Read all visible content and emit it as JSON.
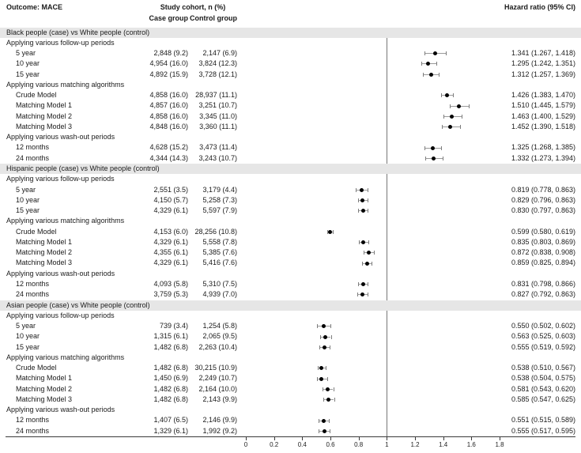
{
  "header": {
    "outcome_label": "Outcome: MACE",
    "cohort_label": "Study cohort, n (%)",
    "case_col": "Case group",
    "control_col": "Control group",
    "hr_col": "Hazard ratio (95% CI)"
  },
  "colors": {
    "section_band": "#e6e6e6",
    "dot": "#000000",
    "whisker": "#9a9a9a",
    "reference_line": "#777777",
    "axis": "#3a3a3a"
  },
  "chart_data": {
    "type": "forest",
    "title": "Outcome: MACE",
    "xlabel": "",
    "x_ticks": [
      0,
      0.2,
      0.4,
      0.6,
      0.8,
      1,
      1.2,
      1.4,
      1.6,
      1.8
    ],
    "xlim": [
      0,
      1.9
    ],
    "reference_value": 1,
    "legend_position": "none",
    "grid": false,
    "subgroup_labels": {
      "followup": "Applying various follow-up periods",
      "matching": "Applying various matching algorithms",
      "washout": "Applying various wash-out periods"
    },
    "sections": [
      {
        "title": "Black people (case) vs White people (control)",
        "groups": [
          {
            "label": "Applying various follow-up periods",
            "rows": [
              {
                "label": "5 year",
                "case": "2,848 (9.2)",
                "control": "2,147 (6.9)",
                "hr": 1.341,
                "lo": 1.267,
                "hi": 1.418,
                "text": "1.341 (1.267, 1.418)"
              },
              {
                "label": "10 year",
                "case": "4,954 (16.0)",
                "control": "3,824 (12.3)",
                "hr": 1.295,
                "lo": 1.242,
                "hi": 1.351,
                "text": "1.295 (1.242, 1.351)"
              },
              {
                "label": "15 year",
                "case": "4,892 (15.9)",
                "control": "3,728 (12.1)",
                "hr": 1.312,
                "lo": 1.257,
                "hi": 1.369,
                "text": "1.312 (1.257, 1.369)"
              }
            ]
          },
          {
            "label": "Applying various matching algorithms",
            "rows": [
              {
                "label": "Crude Model",
                "case": "4,858 (16.0)",
                "control": "28,937 (11.1)",
                "hr": 1.426,
                "lo": 1.383,
                "hi": 1.47,
                "text": "1.426 (1.383, 1.470)"
              },
              {
                "label": "Matching Model 1",
                "case": "4,857 (16.0)",
                "control": "3,251 (10.7)",
                "hr": 1.51,
                "lo": 1.445,
                "hi": 1.579,
                "text": "1.510 (1.445, 1.579)"
              },
              {
                "label": "Matching Model 2",
                "case": "4,858 (16.0)",
                "control": "3,345 (11.0)",
                "hr": 1.463,
                "lo": 1.4,
                "hi": 1.529,
                "text": "1.463 (1.400, 1.529)"
              },
              {
                "label": "Matching Model 3",
                "case": "4,848 (16.0)",
                "control": "3,360 (11.1)",
                "hr": 1.452,
                "lo": 1.39,
                "hi": 1.518,
                "text": "1.452 (1.390, 1.518)"
              }
            ]
          },
          {
            "label": "Applying various wash-out periods",
            "rows": [
              {
                "label": "12 months",
                "case": "4,628 (15.2)",
                "control": "3,473 (11.4)",
                "hr": 1.325,
                "lo": 1.268,
                "hi": 1.385,
                "text": "1.325 (1.268, 1.385)"
              },
              {
                "label": "24 months",
                "case": "4,344 (14.3)",
                "control": "3,243 (10.7)",
                "hr": 1.332,
                "lo": 1.273,
                "hi": 1.394,
                "text": "1.332 (1.273, 1.394)"
              }
            ]
          }
        ]
      },
      {
        "title": "Hispanic people (case) vs White people (control)",
        "groups": [
          {
            "label": "Applying various follow-up periods",
            "rows": [
              {
                "label": "5 year",
                "case": "2,551 (3.5)",
                "control": "3,179 (4.4)",
                "hr": 0.819,
                "lo": 0.778,
                "hi": 0.863,
                "text": "0.819 (0.778, 0.863)"
              },
              {
                "label": "10 year",
                "case": "4,150 (5.7)",
                "control": "5,258 (7.3)",
                "hr": 0.829,
                "lo": 0.796,
                "hi": 0.863,
                "text": "0.829 (0.796, 0.863)"
              },
              {
                "label": "15 year",
                "case": "4,329 (6.1)",
                "control": "5,597 (7.9)",
                "hr": 0.83,
                "lo": 0.797,
                "hi": 0.863,
                "text": "0.830 (0.797, 0.863)"
              }
            ]
          },
          {
            "label": "Applying various matching algorithms",
            "rows": [
              {
                "label": "Crude Model",
                "case": "4,153 (6.0)",
                "control": "28,256 (10.8)",
                "hr": 0.599,
                "lo": 0.58,
                "hi": 0.619,
                "text": "0.599 (0.580, 0.619)"
              },
              {
                "label": "Matching Model 1",
                "case": "4,329 (6.1)",
                "control": "5,558 (7.8)",
                "hr": 0.835,
                "lo": 0.803,
                "hi": 0.869,
                "text": "0.835 (0.803, 0.869)"
              },
              {
                "label": "Matching Model 2",
                "case": "4,355 (6.1)",
                "control": "5,385 (7.6)",
                "hr": 0.872,
                "lo": 0.838,
                "hi": 0.908,
                "text": "0.872 (0.838, 0.908)"
              },
              {
                "label": "Matching Model 3",
                "case": "4,329 (6.1)",
                "control": "5,416 (7.6)",
                "hr": 0.859,
                "lo": 0.825,
                "hi": 0.894,
                "text": "0.859 (0.825, 0.894)"
              }
            ]
          },
          {
            "label": "Applying various wash-out periods",
            "rows": [
              {
                "label": "12 months",
                "case": "4,093 (5.8)",
                "control": "5,310 (7.5)",
                "hr": 0.831,
                "lo": 0.798,
                "hi": 0.866,
                "text": "0.831 (0.798, 0.866)"
              },
              {
                "label": "24 months",
                "case": "3,759 (5.3)",
                "control": "4,939 (7.0)",
                "hr": 0.827,
                "lo": 0.792,
                "hi": 0.863,
                "text": "0.827 (0.792, 0.863)"
              }
            ]
          }
        ]
      },
      {
        "title": "Asian people (case) vs White people (control)",
        "groups": [
          {
            "label": "Applying various follow-up periods",
            "rows": [
              {
                "label": "5 year",
                "case": "739 (3.4)",
                "control": "1,254 (5.8)",
                "hr": 0.55,
                "lo": 0.502,
                "hi": 0.602,
                "text": "0.550 (0.502, 0.602)"
              },
              {
                "label": "10 year",
                "case": "1,315 (6.1)",
                "control": "2,065 (9.5)",
                "hr": 0.563,
                "lo": 0.525,
                "hi": 0.603,
                "text": "0.563 (0.525, 0.603)"
              },
              {
                "label": "15 year",
                "case": "1,482 (6.8)",
                "control": "2,263 (10.4)",
                "hr": 0.555,
                "lo": 0.519,
                "hi": 0.592,
                "text": "0.555 (0.519, 0.592)"
              }
            ]
          },
          {
            "label": "Applying various matching algorithms",
            "rows": [
              {
                "label": "Crude Model",
                "case": "1,482 (6.8)",
                "control": "30,215 (10.9)",
                "hr": 0.538,
                "lo": 0.51,
                "hi": 0.567,
                "text": "0.538 (0.510, 0.567)"
              },
              {
                "label": "Matching Model 1",
                "case": "1,450 (6.9)",
                "control": "2,249 (10.7)",
                "hr": 0.538,
                "lo": 0.504,
                "hi": 0.575,
                "text": "0.538 (0.504, 0.575)"
              },
              {
                "label": "Matching Model 2",
                "case": "1,482 (6.8)",
                "control": "2,164 (10.0)",
                "hr": 0.581,
                "lo": 0.543,
                "hi": 0.62,
                "text": "0.581 (0.543, 0.620)"
              },
              {
                "label": "Matching Model 3",
                "case": "1,482 (6.8)",
                "control": "2,143 (9.9)",
                "hr": 0.585,
                "lo": 0.547,
                "hi": 0.625,
                "text": "0.585 (0.547, 0.625)"
              }
            ]
          },
          {
            "label": "Applying various wash-out periods",
            "rows": [
              {
                "label": "12 months",
                "case": "1,407 (6.5)",
                "control": "2,146 (9.9)",
                "hr": 0.551,
                "lo": 0.515,
                "hi": 0.589,
                "text": "0.551 (0.515, 0.589)"
              },
              {
                "label": "24 months",
                "case": "1,329 (6.1)",
                "control": "1,992 (9.2)",
                "hr": 0.555,
                "lo": 0.517,
                "hi": 0.595,
                "text": "0.555 (0.517, 0.595)"
              }
            ]
          }
        ]
      }
    ]
  }
}
